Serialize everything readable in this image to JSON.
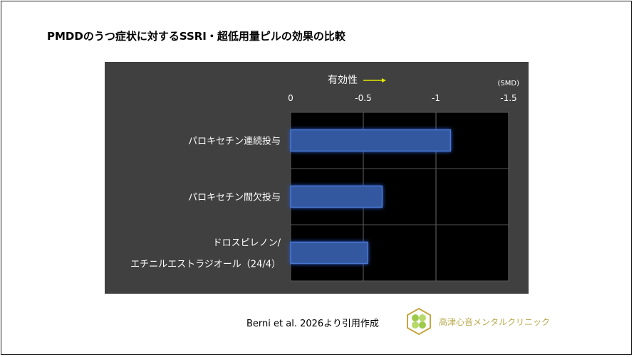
{
  "title": "PMDDのうつ症状に対するSSRI・超低用量ピルの効果の比較",
  "source": "Berni et al. 2026より引用作成",
  "clinic": "高津心音メンタルクリニック",
  "chart_data": {
    "type": "bar",
    "orientation": "horizontal",
    "annotation": "有効性",
    "unit_label": "(SMD)",
    "categories": [
      "パロキセチン連続投与",
      "パロキセチン間欠投与",
      "ドロスピレノン/\nエチニルエストラジオール（24/4）"
    ],
    "values": [
      -1.1,
      -0.63,
      -0.53
    ],
    "xlim": [
      0,
      -1.5
    ],
    "ticks": [
      0,
      -0.5,
      -1,
      -1.5
    ],
    "tick_labels": [
      "0",
      "-0.5",
      "-1",
      "-1.5"
    ],
    "grid": true,
    "colors": {
      "bar": "#3358a0",
      "bar_edge": "#4a78d0",
      "panel": "#404040",
      "plot": "#000000",
      "arrow": "#e6e600"
    }
  }
}
